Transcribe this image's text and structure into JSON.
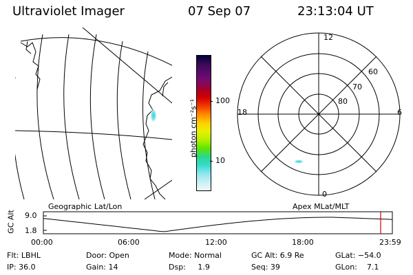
{
  "header": {
    "instrument": "Ultraviolet Imager",
    "date": "07 Sep 07",
    "time": "23:13:04 UT"
  },
  "colorbar": {
    "label": "photon cm⁻²s⁻¹",
    "ticks": [
      "100",
      "10"
    ],
    "colors": [
      "#000040",
      "#3a0a55",
      "#5a0a6e",
      "#7a0a6e",
      "#a5002a",
      "#d40000",
      "#f23c00",
      "#ff8c00",
      "#ffd000",
      "#e8f000",
      "#b4f000",
      "#5ee600",
      "#2ad88c",
      "#34dccc",
      "#8ee6ee",
      "#c8f0f4",
      "#eef8fa"
    ]
  },
  "left_panel": {
    "label": "Geographic Lat/Lon"
  },
  "right_panel": {
    "label": "Apex  MLat/MLT",
    "mlt_labels": {
      "top": "12",
      "left": "18",
      "right": "6",
      "bottom": "0"
    },
    "mlat_labels": [
      "60",
      "70",
      "80"
    ]
  },
  "orbit_plot": {
    "ylabel": "GC Alt",
    "ytick_top": "9.0",
    "ytick_bottom": "1.8",
    "xticks": [
      "00:00",
      "06:00",
      "12:00",
      "18:00",
      "23:59"
    ],
    "current_time_color": "#cc0000"
  },
  "status": {
    "filter": "Flt: LBHL",
    "ip": "IP: 36.0",
    "door": "Door: Open",
    "gain": "Gain: 14",
    "mode": "Mode: Normal",
    "dsp": "Dsp:     1.9",
    "gc_alt": "GC Alt: 6.9 Re",
    "seq": "Seq: 39",
    "glat": "GLat: −54.0",
    "glon": "GLon:    7.1"
  }
}
